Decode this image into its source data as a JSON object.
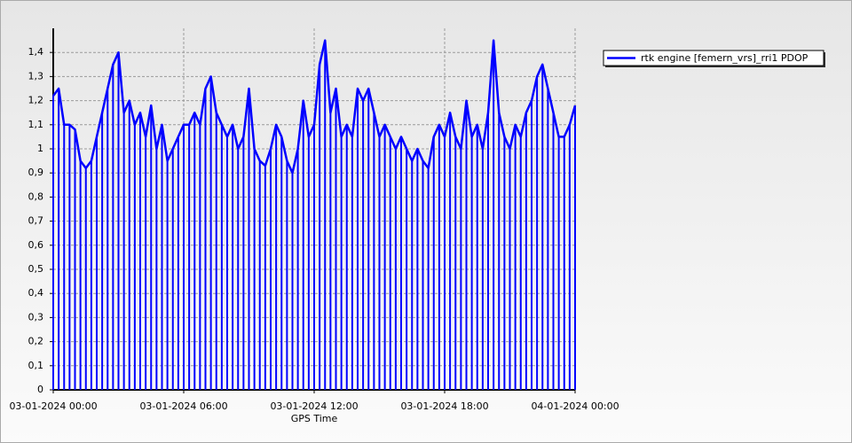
{
  "chart_data": {
    "type": "line",
    "x_label": "GPS Time",
    "x": [
      "03-01-2024 00:00",
      "03-01-2024 00:15",
      "03-01-2024 00:30",
      "03-01-2024 00:45",
      "03-01-2024 01:00",
      "03-01-2024 01:15",
      "03-01-2024 01:30",
      "03-01-2024 01:45",
      "03-01-2024 02:00",
      "03-01-2024 02:15",
      "03-01-2024 02:30",
      "03-01-2024 02:45",
      "03-01-2024 03:00",
      "03-01-2024 03:15",
      "03-01-2024 03:30",
      "03-01-2024 03:45",
      "03-01-2024 04:00",
      "03-01-2024 04:15",
      "03-01-2024 04:30",
      "03-01-2024 04:45",
      "03-01-2024 05:00",
      "03-01-2024 05:15",
      "03-01-2024 05:30",
      "03-01-2024 05:45",
      "03-01-2024 06:00",
      "03-01-2024 06:15",
      "03-01-2024 06:30",
      "03-01-2024 06:45",
      "03-01-2024 07:00",
      "03-01-2024 07:15",
      "03-01-2024 07:30",
      "03-01-2024 07:45",
      "03-01-2024 08:00",
      "03-01-2024 08:15",
      "03-01-2024 08:30",
      "03-01-2024 08:45",
      "03-01-2024 09:00",
      "03-01-2024 09:15",
      "03-01-2024 09:30",
      "03-01-2024 09:45",
      "03-01-2024 10:00",
      "03-01-2024 10:15",
      "03-01-2024 10:30",
      "03-01-2024 10:45",
      "03-01-2024 11:00",
      "03-01-2024 11:15",
      "03-01-2024 11:30",
      "03-01-2024 11:45",
      "03-01-2024 12:00",
      "03-01-2024 12:15",
      "03-01-2024 12:30",
      "03-01-2024 12:45",
      "03-01-2024 13:00",
      "03-01-2024 13:15",
      "03-01-2024 13:30",
      "03-01-2024 13:45",
      "03-01-2024 14:00",
      "03-01-2024 14:15",
      "03-01-2024 14:30",
      "03-01-2024 14:45",
      "03-01-2024 15:00",
      "03-01-2024 15:15",
      "03-01-2024 15:30",
      "03-01-2024 15:45",
      "03-01-2024 16:00",
      "03-01-2024 16:15",
      "03-01-2024 16:30",
      "03-01-2024 16:45",
      "03-01-2024 17:00",
      "03-01-2024 17:15",
      "03-01-2024 17:30",
      "03-01-2024 17:45",
      "03-01-2024 18:00",
      "03-01-2024 18:15",
      "03-01-2024 18:30",
      "03-01-2024 18:45",
      "03-01-2024 19:00",
      "03-01-2024 19:15",
      "03-01-2024 19:30",
      "03-01-2024 19:45",
      "03-01-2024 20:00",
      "03-01-2024 20:15",
      "03-01-2024 20:30",
      "03-01-2024 20:45",
      "03-01-2024 21:00",
      "03-01-2024 21:15",
      "03-01-2024 21:30",
      "03-01-2024 21:45",
      "03-01-2024 22:00",
      "03-01-2024 22:15",
      "03-01-2024 22:30",
      "03-01-2024 22:45",
      "03-01-2024 23:00",
      "03-01-2024 23:15",
      "03-01-2024 23:30",
      "03-01-2024 23:45",
      "04-01-2024 00:00"
    ],
    "series": [
      {
        "name": "rtk engine [femern_vrs]_rri1 PDOP",
        "color": "#0000ff",
        "values": [
          1.22,
          1.25,
          1.1,
          1.1,
          1.08,
          0.95,
          0.92,
          0.95,
          1.05,
          1.15,
          1.25,
          1.35,
          1.4,
          1.15,
          1.2,
          1.1,
          1.15,
          1.05,
          1.18,
          1.0,
          1.1,
          0.95,
          1.0,
          1.05,
          1.1,
          1.1,
          1.15,
          1.1,
          1.25,
          1.3,
          1.15,
          1.1,
          1.05,
          1.1,
          1.0,
          1.05,
          1.25,
          1.0,
          0.95,
          0.93,
          1.0,
          1.1,
          1.05,
          0.95,
          0.9,
          1.0,
          1.2,
          1.05,
          1.1,
          1.35,
          1.45,
          1.15,
          1.25,
          1.05,
          1.1,
          1.05,
          1.25,
          1.2,
          1.25,
          1.15,
          1.05,
          1.1,
          1.05,
          1.0,
          1.05,
          1.0,
          0.95,
          1.0,
          0.95,
          0.92,
          1.05,
          1.1,
          1.05,
          1.15,
          1.05,
          1.0,
          1.2,
          1.05,
          1.1,
          1.0,
          1.15,
          1.45,
          1.15,
          1.05,
          1.0,
          1.1,
          1.05,
          1.15,
          1.2,
          1.3,
          1.35,
          1.25,
          1.15,
          1.05,
          1.05,
          1.1,
          1.18
        ]
      }
    ],
    "xlim": [
      "03-01-2024 00:00",
      "04-01-2024 00:00"
    ],
    "xticks": [
      "03-01-2024 00:00",
      "03-01-2024 06:00",
      "03-01-2024 12:00",
      "03-01-2024 18:00",
      "04-01-2024 00:00"
    ],
    "ylim": [
      0,
      1.5
    ],
    "yticks": [
      0,
      {
        "value": 0.1,
        "label": "0,1"
      },
      {
        "value": 0.2,
        "label": "0,2"
      },
      {
        "value": 0.3,
        "label": "0,3"
      },
      {
        "value": 0.4,
        "label": "0,4"
      },
      {
        "value": 0.5,
        "label": "0,5"
      },
      {
        "value": 0.6,
        "label": "0,6"
      },
      {
        "value": 0.7,
        "label": "0,7"
      },
      {
        "value": 0.8,
        "label": "0,8"
      },
      {
        "value": 0.9,
        "label": "0,9"
      },
      1,
      {
        "value": 1.1,
        "label": "1,1"
      },
      {
        "value": 1.2,
        "label": "1,2"
      },
      {
        "value": 1.3,
        "label": "1,3"
      },
      {
        "value": 1.4,
        "label": "1,4"
      }
    ],
    "grid": true,
    "legend": "top-right"
  }
}
